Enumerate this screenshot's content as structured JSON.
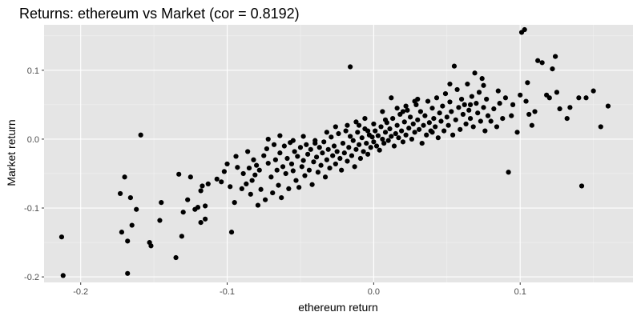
{
  "chart_data": {
    "type": "scatter",
    "title": "Returns: ethereum vs Market (cor = 0.8192)",
    "xlabel": "ethereum return",
    "ylabel": "Market return",
    "xlim": [
      -0.225,
      0.177
    ],
    "ylim": [
      -0.208,
      0.166
    ],
    "xticks": [
      -0.2,
      -0.1,
      0.0,
      0.1
    ],
    "xtick_labels": [
      "-0.2",
      "-0.1",
      "0.0",
      "0.1"
    ],
    "yticks": [
      -0.2,
      -0.1,
      0.0,
      0.1
    ],
    "ytick_labels": [
      "-0.2",
      "-0.1",
      "0.0",
      "0.1"
    ],
    "grid": true,
    "legend": "none",
    "colors": {
      "panel": "#e5e5e5",
      "grid_major": "#ffffff",
      "grid_minor": "#f2f2f2",
      "point": "#000000"
    },
    "points": [
      [
        -0.213,
        -0.142
      ],
      [
        -0.212,
        -0.198
      ],
      [
        -0.172,
        -0.135
      ],
      [
        -0.173,
        -0.079
      ],
      [
        -0.17,
        -0.055
      ],
      [
        -0.168,
        -0.148
      ],
      [
        -0.166,
        -0.085
      ],
      [
        -0.165,
        -0.125
      ],
      [
        -0.168,
        -0.195
      ],
      [
        -0.162,
        -0.102
      ],
      [
        -0.159,
        0.006
      ],
      [
        -0.153,
        -0.15
      ],
      [
        -0.152,
        -0.155
      ],
      [
        -0.146,
        -0.118
      ],
      [
        -0.145,
        -0.092
      ],
      [
        -0.135,
        -0.172
      ],
      [
        -0.133,
        -0.051
      ],
      [
        -0.131,
        -0.141
      ],
      [
        -0.13,
        -0.106
      ],
      [
        -0.127,
        -0.088
      ],
      [
        -0.125,
        -0.055
      ],
      [
        -0.122,
        -0.102
      ],
      [
        -0.12,
        -0.099
      ],
      [
        -0.118,
        -0.075
      ],
      [
        -0.118,
        -0.121
      ],
      [
        -0.117,
        -0.068
      ],
      [
        -0.115,
        -0.097
      ],
      [
        -0.115,
        -0.116
      ],
      [
        -0.113,
        -0.065
      ],
      [
        -0.107,
        -0.058
      ],
      [
        -0.104,
        -0.062
      ],
      [
        -0.102,
        -0.047
      ],
      [
        -0.1,
        -0.036
      ],
      [
        -0.098,
        -0.069
      ],
      [
        -0.097,
        -0.135
      ],
      [
        -0.095,
        -0.092
      ],
      [
        -0.094,
        -0.025
      ],
      [
        -0.093,
        -0.041
      ],
      [
        -0.09,
        -0.072
      ],
      [
        -0.089,
        -0.05
      ],
      [
        -0.087,
        -0.065
      ],
      [
        -0.086,
        -0.018
      ],
      [
        -0.085,
        -0.042
      ],
      [
        -0.084,
        -0.08
      ],
      [
        -0.083,
        -0.06
      ],
      [
        -0.082,
        -0.03
      ],
      [
        -0.081,
        -0.052
      ],
      [
        -0.08,
        -0.038
      ],
      [
        -0.079,
        -0.096
      ],
      [
        -0.078,
        -0.045
      ],
      [
        -0.077,
        -0.073
      ],
      [
        -0.075,
        -0.024
      ],
      [
        -0.074,
        -0.088
      ],
      [
        -0.073,
        -0.014
      ],
      [
        -0.072,
        -0.035
      ],
      [
        -0.07,
        -0.055
      ],
      [
        -0.069,
        -0.078
      ],
      [
        -0.068,
        -0.008
      ],
      [
        -0.067,
        -0.03
      ],
      [
        -0.066,
        -0.045
      ],
      [
        -0.065,
        -0.067
      ],
      [
        -0.064,
        -0.02
      ],
      [
        -0.063,
        -0.085
      ],
      [
        -0.062,
        -0.04
      ],
      [
        -0.061,
        -0.01
      ],
      [
        -0.06,
        -0.05
      ],
      [
        -0.059,
        -0.028
      ],
      [
        -0.058,
        -0.072
      ],
      [
        -0.057,
        -0.005
      ],
      [
        -0.056,
        -0.036
      ],
      [
        -0.055,
        -0.046
      ],
      [
        -0.054,
        -0.018
      ],
      [
        -0.053,
        -0.06
      ],
      [
        -0.052,
        -0.025
      ],
      [
        -0.051,
        -0.07
      ],
      [
        -0.05,
        -0.012
      ],
      [
        -0.049,
        -0.04
      ],
      [
        -0.048,
        -0.031
      ],
      [
        -0.047,
        -0.053
      ],
      [
        -0.046,
        -0.008
      ],
      [
        -0.045,
        -0.022
      ],
      [
        -0.044,
        -0.045
      ],
      [
        -0.043,
        -0.015
      ],
      [
        -0.042,
        -0.066
      ],
      [
        -0.041,
        -0.033
      ],
      [
        -0.04,
        -0.002
      ],
      [
        -0.039,
        -0.026
      ],
      [
        -0.038,
        -0.048
      ],
      [
        -0.037,
        -0.012
      ],
      [
        -0.036,
        -0.038
      ],
      [
        -0.035,
        -0.02
      ],
      [
        -0.034,
        -0.004
      ],
      [
        -0.033,
        -0.055
      ],
      [
        -0.032,
        -0.03
      ],
      [
        -0.031,
        -0.015
      ],
      [
        -0.03,
        -0.042
      ],
      [
        -0.029,
        0.003
      ],
      [
        -0.028,
        -0.024
      ],
      [
        -0.027,
        -0.01
      ],
      [
        -0.026,
        -0.036
      ],
      [
        -0.025,
        -0.018
      ],
      [
        -0.024,
        0.008
      ],
      [
        -0.023,
        -0.028
      ],
      [
        -0.022,
        -0.045
      ],
      [
        -0.021,
        -0.006
      ],
      [
        -0.02,
        -0.02
      ],
      [
        -0.019,
        0.012
      ],
      [
        -0.018,
        -0.032
      ],
      [
        -0.017,
        -0.012
      ],
      [
        -0.016,
        0.004
      ],
      [
        -0.015,
        -0.024
      ],
      [
        -0.014,
        -0.002
      ],
      [
        -0.013,
        -0.04
      ],
      [
        -0.012,
        -0.015
      ],
      [
        -0.011,
        0.01
      ],
      [
        -0.01,
        -0.008
      ],
      [
        -0.009,
        -0.028
      ],
      [
        -0.008,
        0.002
      ],
      [
        -0.007,
        -0.018
      ],
      [
        -0.006,
        0.015
      ],
      [
        -0.005,
        -0.006
      ],
      [
        -0.004,
        -0.022
      ],
      [
        -0.003,
        0.006
      ],
      [
        -0.002,
        -0.012
      ],
      [
        -0.001,
        0.003
      ],
      [
        0.0,
        -0.004
      ],
      [
        0.001,
        0.012
      ],
      [
        0.002,
        -0.01
      ],
      [
        0.003,
        0.005
      ],
      [
        0.004,
        -0.016
      ],
      [
        0.005,
        0.018
      ],
      [
        0.006,
        0.0
      ],
      [
        0.007,
        -0.006
      ],
      [
        0.008,
        0.01
      ],
      [
        0.009,
        0.024
      ],
      [
        0.01,
        -0.002
      ],
      [
        0.011,
        0.015
      ],
      [
        0.012,
        0.004
      ],
      [
        0.013,
        0.03
      ],
      [
        0.014,
        -0.01
      ],
      [
        0.015,
        0.008
      ],
      [
        0.016,
        0.02
      ],
      [
        0.017,
        0.002
      ],
      [
        0.018,
        0.036
      ],
      [
        0.019,
        0.012
      ],
      [
        0.02,
        -0.004
      ],
      [
        0.021,
        0.025
      ],
      [
        0.022,
        0.006
      ],
      [
        0.023,
        0.042
      ],
      [
        0.024,
        0.016
      ],
      [
        0.025,
        0.032
      ],
      [
        0.026,
        0.0
      ],
      [
        0.027,
        0.022
      ],
      [
        0.028,
        0.01
      ],
      [
        0.029,
        0.05
      ],
      [
        0.03,
        0.028
      ],
      [
        0.031,
        0.014
      ],
      [
        0.032,
        0.04
      ],
      [
        0.033,
        -0.006
      ],
      [
        0.034,
        0.02
      ],
      [
        0.035,
        0.034
      ],
      [
        0.036,
        0.006
      ],
      [
        0.037,
        0.055
      ],
      [
        0.038,
        0.024
      ],
      [
        0.039,
        0.012
      ],
      [
        0.04,
        0.045
      ],
      [
        0.041,
        0.03
      ],
      [
        0.042,
        0.018
      ],
      [
        0.043,
        0.06
      ],
      [
        0.044,
        0.002
      ],
      [
        0.045,
        0.038
      ],
      [
        0.046,
        0.026
      ],
      [
        0.047,
        0.048
      ],
      [
        0.048,
        0.012
      ],
      [
        0.049,
        0.066
      ],
      [
        0.05,
        0.032
      ],
      [
        0.051,
        0.02
      ],
      [
        0.052,
        0.054
      ],
      [
        0.053,
        0.04
      ],
      [
        0.054,
        0.006
      ],
      [
        0.055,
        0.106
      ],
      [
        0.056,
        0.028
      ],
      [
        0.057,
        0.072
      ],
      [
        0.058,
        0.046
      ],
      [
        0.059,
        0.014
      ],
      [
        0.06,
        0.058
      ],
      [
        0.061,
        0.036
      ],
      [
        0.062,
        0.05
      ],
      [
        0.063,
        0.022
      ],
      [
        0.064,
        0.08
      ],
      [
        0.065,
        0.042
      ],
      [
        0.066,
        0.03
      ],
      [
        0.067,
        0.062
      ],
      [
        0.068,
        0.018
      ],
      [
        0.069,
        0.096
      ],
      [
        0.07,
        0.052
      ],
      [
        0.071,
        0.038
      ],
      [
        0.072,
        0.068
      ],
      [
        0.073,
        0.026
      ],
      [
        0.074,
        0.088
      ],
      [
        0.075,
        0.046
      ],
      [
        0.076,
        0.012
      ],
      [
        0.077,
        0.058
      ],
      [
        0.078,
        0.034
      ],
      [
        0.08,
        0.026
      ],
      [
        0.082,
        0.044
      ],
      [
        0.084,
        0.018
      ],
      [
        0.086,
        0.052
      ],
      [
        0.088,
        0.03
      ],
      [
        0.09,
        0.06
      ],
      [
        0.092,
        -0.048
      ],
      [
        0.095,
        0.05
      ],
      [
        0.098,
        0.01
      ],
      [
        0.1,
        0.064
      ],
      [
        0.101,
        0.155
      ],
      [
        0.103,
        0.159
      ],
      [
        0.105,
        0.082
      ],
      [
        0.106,
        0.036
      ],
      [
        0.108,
        0.02
      ],
      [
        0.112,
        0.114
      ],
      [
        0.115,
        0.111
      ],
      [
        0.118,
        0.064
      ],
      [
        0.12,
        0.06
      ],
      [
        0.122,
        0.102
      ],
      [
        0.124,
        0.12
      ],
      [
        0.125,
        0.068
      ],
      [
        0.132,
        0.03
      ],
      [
        0.14,
        0.06
      ],
      [
        0.142,
        -0.068
      ],
      [
        0.145,
        0.06
      ],
      [
        0.15,
        0.07
      ],
      [
        0.155,
        0.018
      ],
      [
        0.16,
        0.048
      ],
      [
        -0.016,
        0.105
      ],
      [
        -0.004,
        0.012
      ],
      [
        0.006,
        0.04
      ],
      [
        -0.01,
        0.02
      ],
      [
        0.02,
        0.04
      ],
      [
        0.012,
        0.06
      ],
      [
        0.028,
        0.055
      ],
      [
        0.04,
        0.01
      ],
      [
        0.052,
        0.08
      ],
      [
        0.066,
        0.05
      ],
      [
        0.075,
        0.078
      ],
      [
        0.085,
        0.07
      ],
      [
        0.094,
        0.034
      ],
      [
        0.104,
        0.055
      ],
      [
        0.11,
        0.04
      ],
      [
        0.127,
        0.044
      ],
      [
        0.134,
        0.046
      ],
      [
        -0.072,
        0.0
      ],
      [
        -0.064,
        0.005
      ],
      [
        -0.055,
        -0.002
      ],
      [
        -0.048,
        0.004
      ],
      [
        -0.04,
        -0.006
      ],
      [
        -0.032,
        0.01
      ],
      [
        -0.026,
        0.018
      ],
      [
        -0.018,
        0.02
      ],
      [
        -0.012,
        0.025
      ],
      [
        -0.006,
        0.03
      ],
      [
        0.0,
        0.022
      ],
      [
        0.008,
        0.028
      ],
      [
        0.016,
        0.045
      ],
      [
        0.022,
        0.048
      ],
      [
        0.03,
        0.058
      ]
    ]
  }
}
